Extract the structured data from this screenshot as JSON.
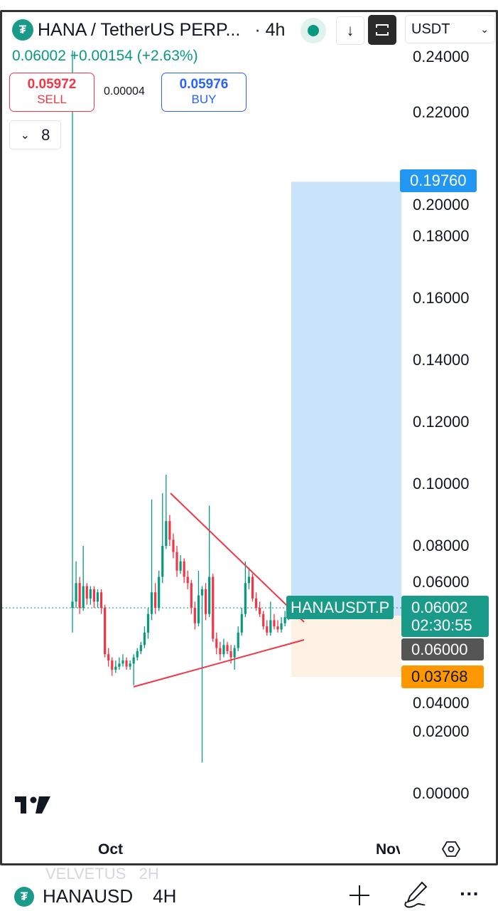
{
  "header": {
    "symbol": "HANA / TetherUS PERP...",
    "interval": "· 4h",
    "currency": "USDT",
    "logo_glyph": "₮"
  },
  "quote": {
    "last": "0.06002",
    "change": "+0.00154 (+2.63%)"
  },
  "trade": {
    "sell_price": "0.05972",
    "sell_label": "SELL",
    "spread": "0.00004",
    "buy_price": "0.05976",
    "buy_label": "BUY"
  },
  "indicators_toggle": {
    "count": "8"
  },
  "axis": {
    "labels": [
      "0.24000",
      "0.22000",
      "0.20000",
      "0.18000",
      "0.16000",
      "0.14000",
      "0.12000",
      "0.10000",
      "0.08000",
      "0.06000",
      "0.04000",
      "0.02000",
      "0.00000"
    ]
  },
  "tags": {
    "target": "0.19760",
    "symbol_label": "HANAUSDT.P",
    "price": "0.06002",
    "countdown": "02:30:55",
    "entry": "0.06000",
    "stop": "0.03768"
  },
  "colors": {
    "up": "#089981",
    "down": "#f23645",
    "target_zone": "#c9e3fb",
    "stop_zone": "#fdf1e3",
    "tag_blue": "#2196f3",
    "tag_orange": "#ff9800"
  },
  "time_axis": {
    "labels": [
      "Oct",
      "Nov"
    ]
  },
  "bottom_bar": {
    "ghost_symbol": "VELVETUS",
    "ghost_interval": "2H",
    "symbol": "HANAUSD",
    "interval": "4H"
  },
  "chart_data": {
    "type": "candlestick",
    "ylim": [
      0,
      0.24
    ],
    "x_labels": [
      "Oct",
      "Nov"
    ],
    "open_first": 0.06,
    "candles_hlc": [
      [
        0.24,
        0.052,
        0.062
      ],
      [
        0.075,
        0.06,
        0.068
      ],
      [
        0.07,
        0.058,
        0.06
      ],
      [
        0.08,
        0.059,
        0.067
      ],
      [
        0.068,
        0.061,
        0.063
      ],
      [
        0.067,
        0.061,
        0.066
      ],
      [
        0.067,
        0.06,
        0.062
      ],
      [
        0.066,
        0.06,
        0.065
      ],
      [
        0.066,
        0.058,
        0.06
      ],
      [
        0.061,
        0.044,
        0.045
      ],
      [
        0.047,
        0.041,
        0.043
      ],
      [
        0.044,
        0.038,
        0.04
      ],
      [
        0.043,
        0.039,
        0.041
      ],
      [
        0.044,
        0.04,
        0.042
      ],
      [
        0.045,
        0.041,
        0.043
      ],
      [
        0.044,
        0.04,
        0.041
      ],
      [
        0.043,
        0.04,
        0.042
      ],
      [
        0.045,
        0.035,
        0.044
      ],
      [
        0.047,
        0.043,
        0.046
      ],
      [
        0.049,
        0.045,
        0.048
      ],
      [
        0.054,
        0.047,
        0.052
      ],
      [
        0.06,
        0.05,
        0.058
      ],
      [
        0.095,
        0.056,
        0.065
      ],
      [
        0.068,
        0.058,
        0.06
      ],
      [
        0.072,
        0.059,
        0.07
      ],
      [
        0.097,
        0.068,
        0.08
      ],
      [
        0.103,
        0.079,
        0.088
      ],
      [
        0.09,
        0.08,
        0.082
      ],
      [
        0.084,
        0.076,
        0.078
      ],
      [
        0.08,
        0.07,
        0.072
      ],
      [
        0.077,
        0.071,
        0.075
      ],
      [
        0.076,
        0.068,
        0.07
      ],
      [
        0.072,
        0.066,
        0.068
      ],
      [
        0.069,
        0.058,
        0.06
      ],
      [
        0.062,
        0.053,
        0.055
      ],
      [
        0.072,
        0.054,
        0.064
      ],
      [
        0.067,
        0.01,
        0.066
      ],
      [
        0.068,
        0.056,
        0.058
      ],
      [
        0.093,
        0.057,
        0.07
      ],
      [
        0.071,
        0.049,
        0.05
      ],
      [
        0.052,
        0.045,
        0.047
      ],
      [
        0.049,
        0.043,
        0.045
      ],
      [
        0.05,
        0.044,
        0.048
      ],
      [
        0.049,
        0.045,
        0.046
      ],
      [
        0.048,
        0.042,
        0.044
      ],
      [
        0.048,
        0.04,
        0.047
      ],
      [
        0.054,
        0.046,
        0.052
      ],
      [
        0.06,
        0.051,
        0.058
      ],
      [
        0.075,
        0.057,
        0.068
      ],
      [
        0.073,
        0.066,
        0.07
      ],
      [
        0.071,
        0.062,
        0.063
      ],
      [
        0.065,
        0.059,
        0.06
      ],
      [
        0.062,
        0.057,
        0.058
      ],
      [
        0.059,
        0.053,
        0.054
      ],
      [
        0.056,
        0.051,
        0.052
      ],
      [
        0.062,
        0.051,
        0.056
      ],
      [
        0.058,
        0.053,
        0.054
      ],
      [
        0.056,
        0.052,
        0.053
      ],
      [
        0.057,
        0.052,
        0.055
      ],
      [
        0.059,
        0.054,
        0.057
      ],
      [
        0.061,
        0.056,
        0.06
      ],
      [
        0.062,
        0.058,
        0.06002
      ]
    ],
    "long_position": {
      "entry": 0.06,
      "target": 0.1976,
      "stop": 0.03768
    },
    "last_price": 0.06002
  }
}
